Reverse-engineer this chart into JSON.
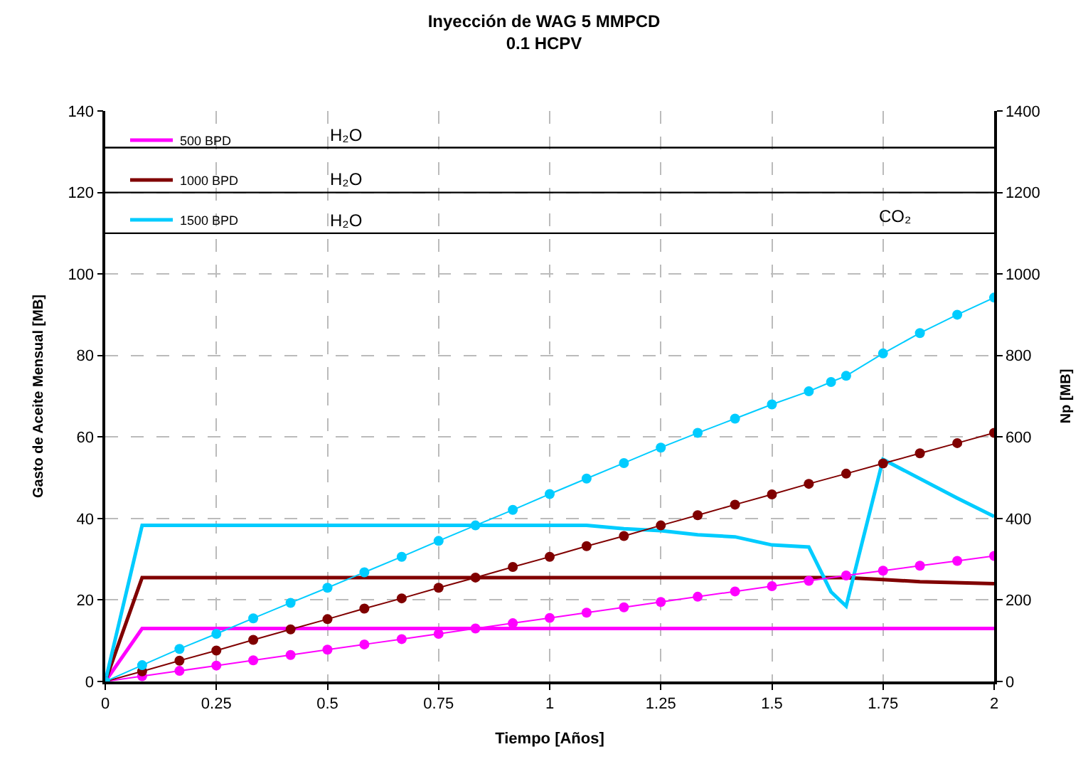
{
  "chart_data": {
    "type": "line",
    "title": "Inyección de WAG 5 MMPCD",
    "subtitle": "0.1 HCPV",
    "xlabel": "Tiempo [Años]",
    "ylabel": "Gasto de Aceite Mensual [MB]",
    "y2label": "Np [MB]",
    "xlim": [
      0,
      2
    ],
    "xticks": [
      0,
      0.25,
      0.5,
      0.75,
      1,
      1.25,
      1.5,
      1.75,
      2
    ],
    "ylim": [
      0,
      140
    ],
    "yticks": [
      0,
      20,
      40,
      60,
      80,
      100,
      120,
      140
    ],
    "y2lim": [
      0,
      1400
    ],
    "y2ticks": [
      0,
      200,
      400,
      600,
      800,
      1000,
      1200,
      1400
    ],
    "grid": true,
    "legend": "top left",
    "series": [
      {
        "name": "500 BPD",
        "color": "#ff00ff",
        "marker": "none",
        "x": [
          0,
          0.083,
          2
        ],
        "values": [
          0,
          13,
          13
        ]
      },
      {
        "name": "1000 BPD",
        "color": "#800000",
        "marker": "none",
        "x": [
          0,
          0.083,
          1.667,
          1.75,
          1.833,
          2
        ],
        "values": [
          0,
          25.5,
          25.5,
          25,
          24.5,
          24
        ]
      },
      {
        "name": "1500 BPD",
        "color": "#00ccff",
        "marker": "none",
        "x": [
          0,
          0.083,
          1.083,
          1.167,
          1.25,
          1.333,
          1.417,
          1.5,
          1.583,
          1.633,
          1.667,
          1.75,
          1.917,
          2
        ],
        "values": [
          0,
          38.3,
          38.3,
          37.5,
          37,
          36,
          35.5,
          33.5,
          33,
          22,
          18.5,
          54.5,
          45,
          40.5
        ]
      },
      {
        "color": "#ff00ff",
        "marker": "circle",
        "axis": "y2",
        "x": [
          0,
          0.083,
          0.167,
          0.25,
          0.333,
          0.417,
          0.5,
          0.583,
          0.667,
          0.75,
          0.833,
          0.917,
          1,
          1.083,
          1.167,
          1.25,
          1.333,
          1.417,
          1.5,
          1.583,
          1.667,
          1.75,
          1.833,
          1.917,
          2
        ],
        "values": [
          0,
          13,
          26,
          39,
          52,
          65,
          78,
          91,
          104,
          117,
          130,
          143,
          156,
          169,
          182,
          195,
          208,
          221,
          234,
          247,
          260,
          272,
          284,
          296,
          308
        ]
      },
      {
        "color": "#800000",
        "marker": "circle",
        "axis": "y2",
        "x": [
          0,
          0.083,
          0.167,
          0.25,
          0.333,
          0.417,
          0.5,
          0.583,
          0.667,
          0.75,
          0.833,
          0.917,
          1,
          1.083,
          1.167,
          1.25,
          1.333,
          1.417,
          1.5,
          1.583,
          1.667,
          1.75,
          1.833,
          1.917,
          2
        ],
        "values": [
          0,
          25,
          51,
          76,
          102,
          128,
          153,
          179,
          204,
          230,
          255,
          281,
          306,
          332,
          357,
          383,
          408,
          434,
          459,
          485,
          510,
          535,
          560,
          585,
          610
        ]
      },
      {
        "color": "#00ccff",
        "marker": "circle",
        "axis": "y2",
        "x": [
          0,
          0.083,
          0.167,
          0.25,
          0.333,
          0.417,
          0.5,
          0.583,
          0.667,
          0.75,
          0.833,
          0.917,
          1,
          1.083,
          1.167,
          1.25,
          1.333,
          1.417,
          1.5,
          1.583,
          1.633,
          1.667,
          1.75,
          1.833,
          1.917,
          2
        ],
        "values": [
          0,
          40,
          80,
          117,
          155,
          193,
          230,
          268,
          306,
          345,
          383,
          421,
          460,
          498,
          536,
          574,
          610,
          645,
          680,
          712,
          735,
          750,
          805,
          855,
          900,
          942
        ]
      }
    ],
    "ref_lines": [
      {
        "axis": "y",
        "value": 131,
        "color": "#000000",
        "label": "H₂O"
      },
      {
        "axis": "y",
        "value": 120,
        "color": "#000000",
        "label": "H₂O"
      },
      {
        "axis": "y",
        "value": 110,
        "color": "#000000",
        "label": "H₂O"
      }
    ],
    "annotations": [
      "CO₂"
    ]
  }
}
